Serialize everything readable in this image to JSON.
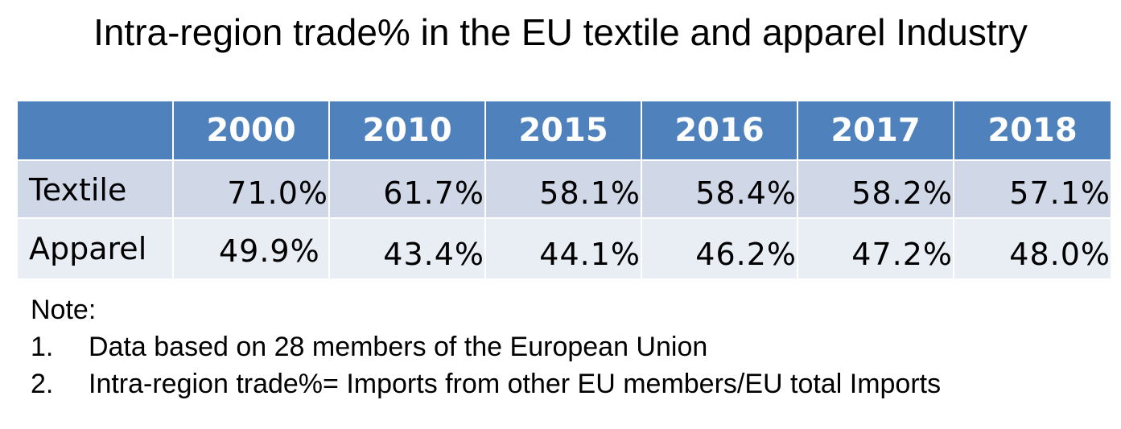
{
  "title": "Intra-region trade% in the EU textile and apparel Industry",
  "table": {
    "years": [
      "2000",
      "2010",
      "2015",
      "2016",
      "2017",
      "2018"
    ],
    "rows": [
      {
        "label": "Textile",
        "values": [
          "71.0%",
          "61.7%",
          "58.1%",
          "58.4%",
          "58.2%",
          "57.1%"
        ]
      },
      {
        "label": "Apparel",
        "values": [
          "49.9%",
          "43.4%",
          "44.1%",
          "46.2%",
          "47.2%",
          "48.0%"
        ]
      }
    ]
  },
  "notes": {
    "heading": "Note:",
    "items": [
      {
        "number": "1.",
        "text": "Data based on 28 members of the European Union"
      },
      {
        "number": "2.",
        "text": "Intra-region trade%= Imports from other EU members/EU total Imports"
      }
    ]
  },
  "colors": {
    "header": "#4f81bd",
    "row_textile": "#d0d8e8",
    "row_apparel": "#e9edf4"
  }
}
